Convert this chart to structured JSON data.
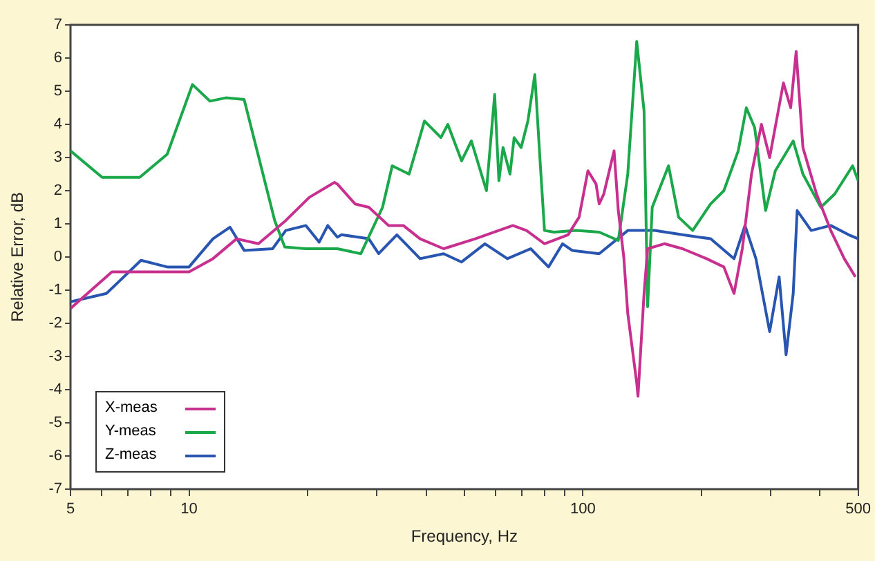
{
  "chart_data": {
    "type": "line",
    "xlabel": "Frequency, Hz",
    "ylabel": "Relative Error, dB",
    "log": "x",
    "xlim": [
      5,
      500
    ],
    "xticks": [
      5,
      {
        "value": 6,
        "label": null
      },
      {
        "value": 7,
        "label": null
      },
      {
        "value": 8,
        "label": null
      },
      {
        "value": 9,
        "label": null
      },
      10,
      {
        "value": 20,
        "label": null
      },
      {
        "value": 30,
        "label": null
      },
      {
        "value": 40,
        "label": null
      },
      {
        "value": 50,
        "label": null
      },
      {
        "value": 60,
        "label": null
      },
      {
        "value": 70,
        "label": null
      },
      {
        "value": 80,
        "label": null
      },
      {
        "value": 90,
        "label": null
      },
      100,
      {
        "value": 200,
        "label": null
      },
      {
        "value": 300,
        "label": null
      },
      {
        "value": 400,
        "label": null
      },
      500
    ],
    "ylim": [
      -7,
      7
    ],
    "yticks": [
      -7,
      -6,
      -5,
      -4,
      -3,
      -2,
      -1,
      0,
      1,
      2,
      3,
      4,
      5,
      6,
      7
    ],
    "grid": false,
    "legend": "bottom left",
    "marker": "none",
    "line_style": "solid",
    "series": [
      {
        "name": "X-meas",
        "color": "#c8308f",
        "x": [
          5,
          6.37,
          7.49,
          10,
          11.5,
          13.2,
          15,
          17.6,
          20.2,
          23.4,
          23.8,
          26.4,
          28.6,
          32.1,
          35,
          38.6,
          44.3,
          53.3,
          66.4,
          71.9,
          79.9,
          91.7,
          97.8,
          103,
          108,
          110,
          113,
          120,
          123,
          127,
          130,
          137,
          138,
          143,
          146,
          161,
          179,
          206,
          228,
          242,
          254,
          268,
          284,
          298,
          323,
          337,
          348,
          362,
          392,
          426,
          461,
          492
        ],
        "values": [
          -1.55,
          -0.45,
          -0.45,
          -0.45,
          -0.05,
          0.55,
          0.4,
          1.1,
          1.8,
          2.25,
          2.2,
          1.6,
          1.5,
          0.95,
          0.95,
          0.55,
          0.25,
          0.55,
          0.95,
          0.8,
          0.4,
          0.67,
          1.2,
          2.6,
          2.2,
          1.6,
          1.9,
          3.2,
          1.4,
          0,
          -1.7,
          -3.8,
          -4.2,
          -1.1,
          0.25,
          0.4,
          0.25,
          -0.05,
          -0.3,
          -1.1,
          0.25,
          2.5,
          4,
          3,
          5.25,
          4.5,
          6.2,
          3.3,
          1.9,
          0.8,
          -0.05,
          -0.6
        ]
      },
      {
        "name": "Y-meas",
        "color": "#1aa84a",
        "x": [
          5,
          6.02,
          7.49,
          8.8,
          10.2,
          11.3,
          12.4,
          13.8,
          16.5,
          17.5,
          19.8,
          23.8,
          27.3,
          31,
          32.8,
          36.2,
          39.6,
          43.6,
          45.4,
          49.2,
          52.1,
          56.9,
          59.7,
          61.2,
          62.7,
          65.3,
          66.9,
          69.7,
          72.5,
          75.5,
          78,
          79.9,
          84.5,
          96.2,
          110,
          123,
          130,
          137,
          143,
          146,
          150,
          165,
          175,
          190,
          211,
          228,
          248,
          260,
          273,
          291,
          308,
          342,
          362,
          402,
          436,
          484,
          500
        ],
        "values": [
          3.2,
          2.4,
          2.4,
          3.1,
          5.2,
          4.7,
          4.8,
          4.75,
          1.1,
          0.3,
          0.25,
          0.25,
          0.1,
          1.5,
          2.75,
          2.5,
          4.1,
          3.6,
          4,
          2.9,
          3.5,
          2,
          4.9,
          2.3,
          3.3,
          2.5,
          3.6,
          3.3,
          4.1,
          5.5,
          2.75,
          0.8,
          0.75,
          0.8,
          0.75,
          0.5,
          2.5,
          6.5,
          4.4,
          -1.5,
          1.5,
          2.75,
          1.2,
          0.8,
          1.6,
          2,
          3.2,
          4.5,
          3.9,
          1.4,
          2.6,
          3.5,
          2.5,
          1.5,
          1.9,
          2.75,
          2.3
        ]
      },
      {
        "name": "Z-meas",
        "color": "#2855b0",
        "x": [
          5,
          6.17,
          6.69,
          7.55,
          8.8,
          10,
          11.5,
          12.7,
          13.8,
          16.3,
          17.6,
          19.8,
          21.4,
          22.5,
          23.8,
          24.4,
          28.6,
          30.3,
          33.7,
          38.6,
          44.3,
          49.2,
          56.4,
          64.3,
          73.7,
          81.8,
          88.8,
          93.9,
          110,
          130,
          152,
          179,
          211,
          242,
          258,
          275,
          298,
          315,
          328,
          342,
          350,
          380,
          426,
          473,
          500
        ],
        "values": [
          -1.35,
          -1.1,
          -0.7,
          -0.1,
          -0.3,
          -0.3,
          0.55,
          0.9,
          0.2,
          0.25,
          0.8,
          0.95,
          0.45,
          0.95,
          0.6,
          0.67,
          0.55,
          0.1,
          0.67,
          -0.05,
          0.1,
          -0.15,
          0.4,
          -0.05,
          0.25,
          -0.3,
          0.4,
          0.2,
          0.1,
          0.8,
          0.8,
          0.67,
          0.55,
          -0.05,
          0.95,
          -0.05,
          -2.25,
          -0.6,
          -2.95,
          -1.1,
          1.4,
          0.8,
          0.95,
          0.67,
          0.55
        ]
      }
    ]
  }
}
